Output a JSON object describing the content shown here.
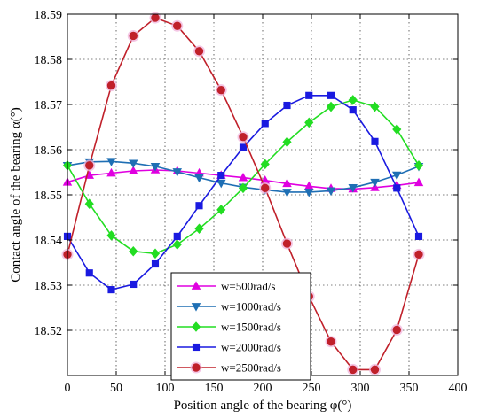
{
  "chart_data": {
    "type": "line",
    "title": "",
    "xlabel": "Position angle of the bearing φ(°)",
    "ylabel": "Contact angle of the bearing α(°)",
    "xlim": [
      0,
      400
    ],
    "ylim": [
      18.51,
      18.59
    ],
    "xticks": [
      "0",
      "50",
      "100",
      "150",
      "200",
      "250",
      "300",
      "350",
      "400"
    ],
    "yticks": [
      "18.52",
      "18.53",
      "18.54",
      "18.55",
      "18.56",
      "18.57",
      "18.58",
      "18.59"
    ],
    "grid": true,
    "legend_position": "bottom-center",
    "x": [
      0,
      22.5,
      45,
      67.5,
      90,
      112.5,
      135,
      157.5,
      180,
      202.5,
      225,
      247.5,
      270,
      292.5,
      315,
      337.5,
      360
    ],
    "series": [
      {
        "name": "w=500rad/s",
        "color": "#e000e0",
        "marker": "triangle-up",
        "values": [
          18.5528,
          18.5543,
          18.5548,
          18.5553,
          18.5555,
          18.5553,
          18.5548,
          18.5543,
          18.5538,
          18.5532,
          18.5525,
          18.5519,
          18.5514,
          18.5513,
          18.5516,
          18.5521,
          18.5527
        ]
      },
      {
        "name": "w=1000rad/s",
        "color": "#1f6fb4",
        "marker": "triangle-down",
        "values": [
          18.5565,
          18.5573,
          18.5574,
          18.557,
          18.5563,
          18.5551,
          18.5538,
          18.5526,
          18.5517,
          18.5511,
          18.5506,
          18.5506,
          18.5509,
          18.5516,
          18.5528,
          18.5544,
          18.5563
        ]
      },
      {
        "name": "w=1500rad/s",
        "color": "#22dd22",
        "marker": "diamond",
        "values": [
          18.5565,
          18.548,
          18.541,
          18.5375,
          18.537,
          18.539,
          18.5425,
          18.5467,
          18.5515,
          18.5568,
          18.5617,
          18.566,
          18.5695,
          18.571,
          18.5695,
          18.5645,
          18.5565
        ]
      },
      {
        "name": "w=2000rad/s",
        "color": "#1a1ae0",
        "marker": "square",
        "values": [
          18.5408,
          18.5327,
          18.529,
          18.5302,
          18.5347,
          18.5408,
          18.5476,
          18.5543,
          18.5605,
          18.5658,
          18.5698,
          18.572,
          18.572,
          18.5688,
          18.5618,
          18.5515,
          18.5408
        ]
      },
      {
        "name": "w=2500rad/s",
        "color": "#c0202a",
        "marker": "circle",
        "values": [
          18.5368,
          18.5565,
          18.5742,
          18.5852,
          18.5892,
          18.5874,
          18.5818,
          18.5732,
          18.5628,
          18.5515,
          18.5392,
          18.5275,
          18.5175,
          18.5113,
          18.5113,
          18.5201,
          18.5368
        ]
      }
    ]
  }
}
